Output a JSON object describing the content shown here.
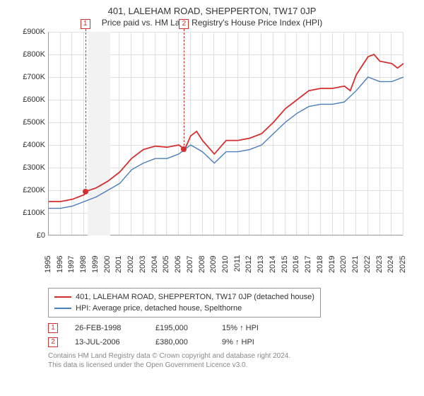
{
  "title": "401, LALEHAM ROAD, SHEPPERTON, TW17 0JP",
  "subtitle": "Price paid vs. HM Land Registry's House Price Index (HPI)",
  "chart": {
    "type": "line",
    "ylim": [
      0,
      900
    ],
    "xlim": [
      1995,
      2025
    ],
    "yticks": [
      0,
      100,
      200,
      300,
      400,
      500,
      600,
      700,
      800,
      900
    ],
    "ytick_labels": [
      "£0",
      "£100K",
      "£200K",
      "£300K",
      "£400K",
      "£500K",
      "£600K",
      "£700K",
      "£800K",
      "£900K"
    ],
    "xticks": [
      1995,
      1996,
      1997,
      1998,
      1999,
      2000,
      2001,
      2002,
      2003,
      2004,
      2005,
      2006,
      2007,
      2008,
      2009,
      2010,
      2011,
      2012,
      2013,
      2014,
      2015,
      2016,
      2017,
      2018,
      2019,
      2020,
      2021,
      2022,
      2023,
      2024,
      2025
    ],
    "background_color": "#ffffff",
    "grid_color": "#e0e0e0",
    "axis_color": "#999999",
    "tick_fontsize": 11,
    "shaded_band": {
      "x_start": 1998.3,
      "x_end": 2000.2,
      "color": "#f2f2f2"
    },
    "series": [
      {
        "name": "property",
        "label": "401, LALEHAM ROAD, SHEPPERTON, TW17 0JP (detached house)",
        "color": "#d32f2f",
        "line_width": 1.8,
        "data": [
          [
            1995,
            150
          ],
          [
            1996,
            150
          ],
          [
            1997,
            160
          ],
          [
            1998,
            180
          ],
          [
            1998.15,
            195
          ],
          [
            1999,
            210
          ],
          [
            2000,
            240
          ],
          [
            2001,
            280
          ],
          [
            2002,
            340
          ],
          [
            2003,
            380
          ],
          [
            2004,
            395
          ],
          [
            2005,
            390
          ],
          [
            2006,
            400
          ],
          [
            2006.5,
            380
          ],
          [
            2007,
            440
          ],
          [
            2007.5,
            460
          ],
          [
            2008,
            420
          ],
          [
            2009,
            360
          ],
          [
            2010,
            420
          ],
          [
            2011,
            420
          ],
          [
            2012,
            430
          ],
          [
            2013,
            450
          ],
          [
            2014,
            500
          ],
          [
            2015,
            560
          ],
          [
            2016,
            600
          ],
          [
            2017,
            640
          ],
          [
            2018,
            650
          ],
          [
            2019,
            650
          ],
          [
            2020,
            660
          ],
          [
            2020.5,
            640
          ],
          [
            2021,
            710
          ],
          [
            2022,
            790
          ],
          [
            2022.5,
            800
          ],
          [
            2023,
            770
          ],
          [
            2024,
            760
          ],
          [
            2024.5,
            740
          ],
          [
            2025,
            760
          ]
        ]
      },
      {
        "name": "hpi",
        "label": "HPI: Average price, detached house, Spelthorne",
        "color": "#4a7ebb",
        "line_width": 1.4,
        "data": [
          [
            1995,
            120
          ],
          [
            1996,
            120
          ],
          [
            1997,
            130
          ],
          [
            1998,
            150
          ],
          [
            1999,
            170
          ],
          [
            2000,
            200
          ],
          [
            2001,
            230
          ],
          [
            2002,
            290
          ],
          [
            2003,
            320
          ],
          [
            2004,
            340
          ],
          [
            2005,
            340
          ],
          [
            2006,
            360
          ],
          [
            2007,
            400
          ],
          [
            2008,
            370
          ],
          [
            2009,
            320
          ],
          [
            2010,
            370
          ],
          [
            2011,
            370
          ],
          [
            2012,
            380
          ],
          [
            2013,
            400
          ],
          [
            2014,
            450
          ],
          [
            2015,
            500
          ],
          [
            2016,
            540
          ],
          [
            2017,
            570
          ],
          [
            2018,
            580
          ],
          [
            2019,
            580
          ],
          [
            2020,
            590
          ],
          [
            2021,
            640
          ],
          [
            2022,
            700
          ],
          [
            2023,
            680
          ],
          [
            2024,
            680
          ],
          [
            2025,
            700
          ]
        ]
      }
    ],
    "markers": [
      {
        "id": "1",
        "x": 1998.15,
        "y": 195,
        "box_y": -18
      },
      {
        "id": "2",
        "x": 2006.5,
        "y": 380,
        "box_y": -18
      }
    ]
  },
  "legend": {
    "items": [
      {
        "color": "#d32f2f",
        "label": "401, LALEHAM ROAD, SHEPPERTON, TW17 0JP (detached house)"
      },
      {
        "color": "#4a7ebb",
        "label": "HPI: Average price, detached house, Spelthorne"
      }
    ]
  },
  "transactions": [
    {
      "id": "1",
      "date": "26-FEB-1998",
      "price": "£195,000",
      "hpi": "15% ↑ HPI"
    },
    {
      "id": "2",
      "date": "13-JUL-2006",
      "price": "£380,000",
      "hpi": "9% ↑ HPI"
    }
  ],
  "footer_line1": "Contains HM Land Registry data © Crown copyright and database right 2024.",
  "footer_line2": "This data is licensed under the Open Government Licence v3.0."
}
